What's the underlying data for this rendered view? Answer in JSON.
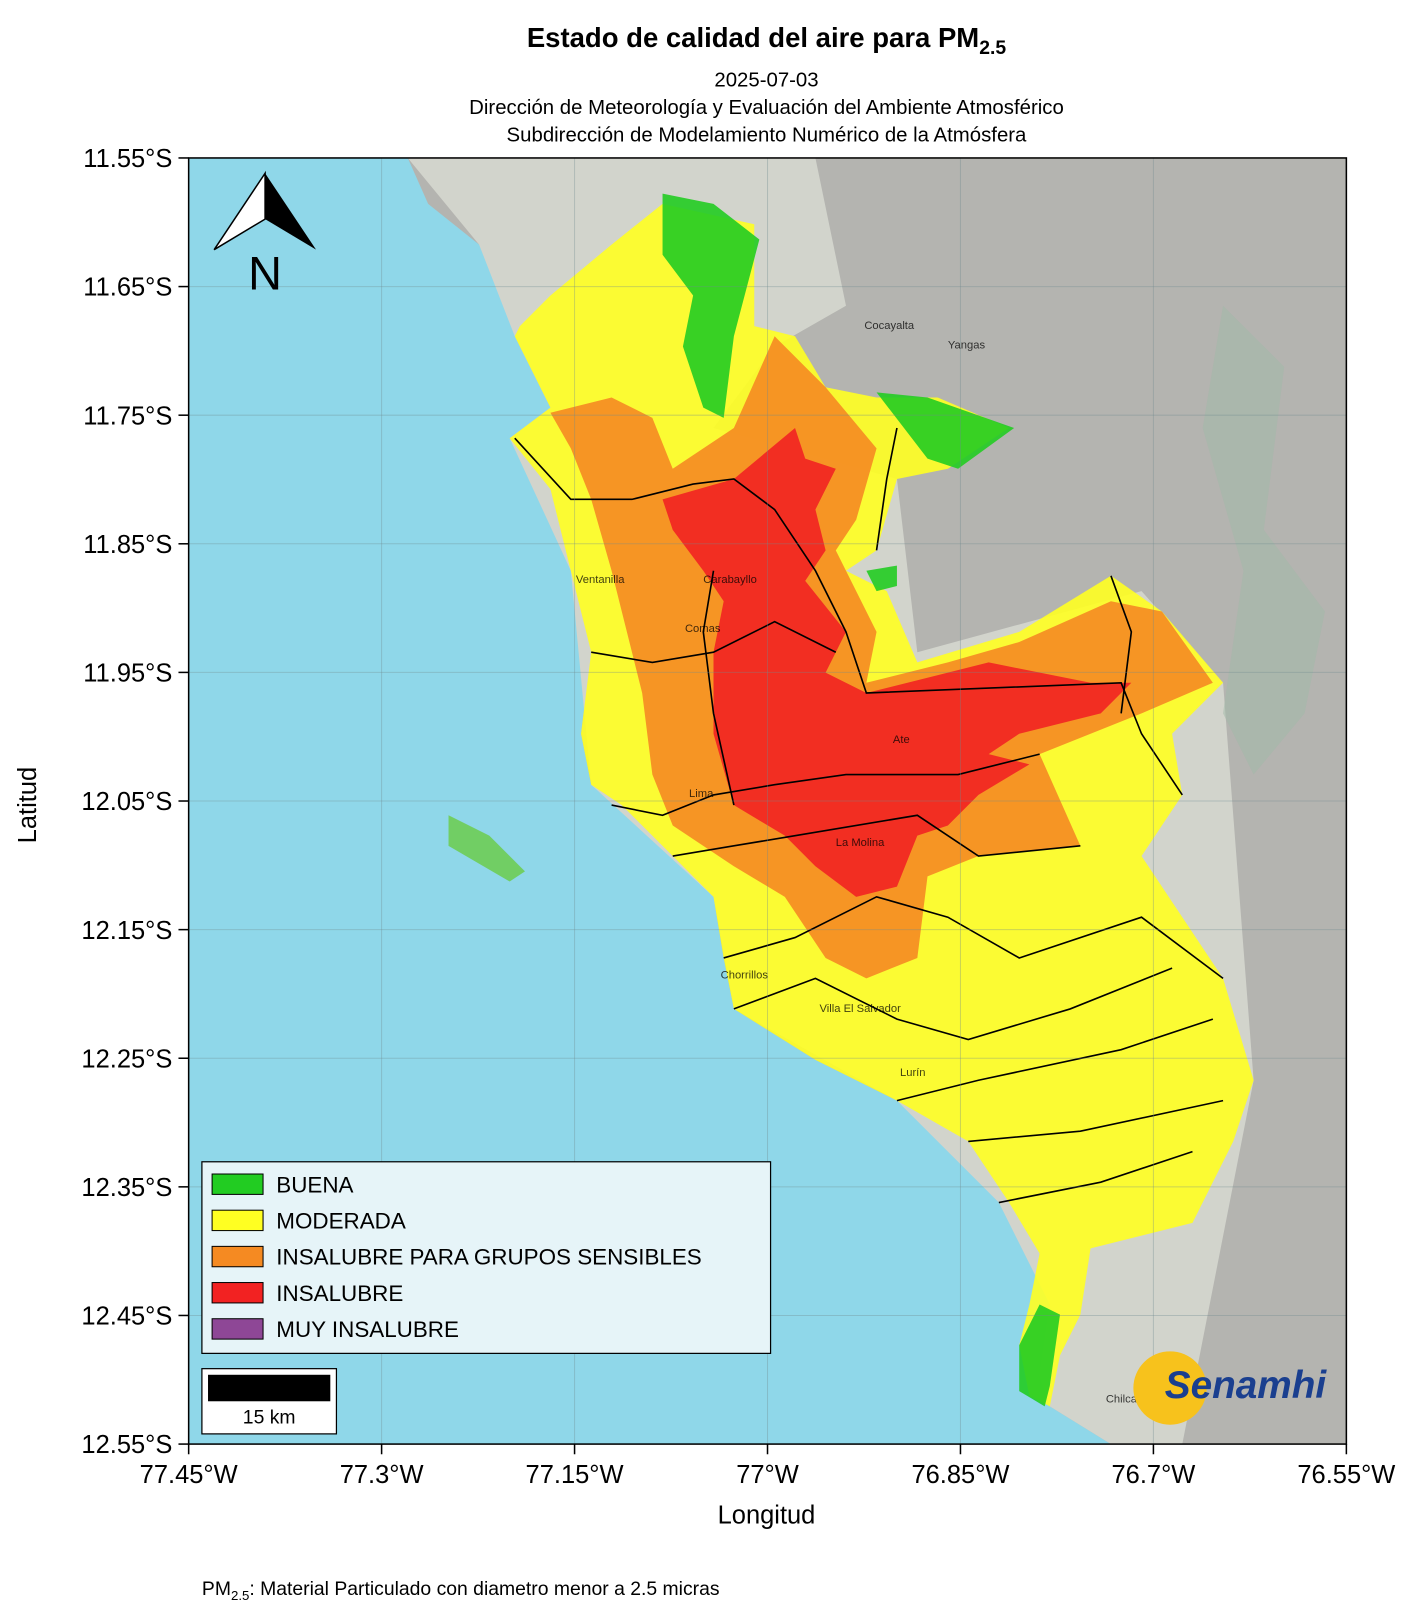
{
  "header": {
    "title": "Estado de calidad del aire para PM",
    "title_subscript": "2.5",
    "subtitle": [
      "2025-07-03",
      "Dirección de Meteorología y Evaluación del Ambiente Atmosférico",
      "Subdirección de Modelamiento Numérico de la Atmósfera"
    ]
  },
  "map": {
    "xlabel": "Longitud",
    "ylabel": "Latitud",
    "xlim": [
      -77.45,
      -76.55
    ],
    "ylim": [
      -12.55,
      -11.55
    ],
    "xticks": [
      {
        "value": -77.45,
        "label": "77.45°W"
      },
      {
        "value": -77.3,
        "label": "77.3°W"
      },
      {
        "value": -77.15,
        "label": "77.15°W"
      },
      {
        "value": -77,
        "label": "77°W"
      },
      {
        "value": -76.85,
        "label": "76.85°W"
      },
      {
        "value": -76.7,
        "label": "76.7°W"
      },
      {
        "value": -76.55,
        "label": "76.55°W"
      }
    ],
    "yticks": [
      {
        "value": -11.55,
        "label": "11.55°S"
      },
      {
        "value": -11.65,
        "label": "11.65°S"
      },
      {
        "value": -11.75,
        "label": "11.75°S"
      },
      {
        "value": -11.85,
        "label": "11.85°S"
      },
      {
        "value": -11.95,
        "label": "11.95°S"
      },
      {
        "value": -12.05,
        "label": "12.05°S"
      },
      {
        "value": -12.15,
        "label": "12.15°S"
      },
      {
        "value": -12.25,
        "label": "12.25°S"
      },
      {
        "value": -12.35,
        "label": "12.35°S"
      },
      {
        "value": -12.45,
        "label": "12.45°S"
      },
      {
        "value": -12.55,
        "label": "12.55°S"
      }
    ],
    "grid": true,
    "north_label": "N",
    "scale_label": "15 km",
    "logo": "Senamhi",
    "places": [
      "Carabayllo",
      "Comas",
      "Ventanilla",
      "Lima",
      "Ate",
      "La Molina",
      "Chorrillos",
      "Villa El Salvador",
      "Cocayalta",
      "Yangas",
      "Chilca",
      "Lurín"
    ]
  },
  "legend": {
    "items": [
      {
        "label": "BUENA",
        "color": "#22cc22"
      },
      {
        "label": "MODERADA",
        "color": "#ffff22"
      },
      {
        "label": "INSALUBRE PARA GRUPOS SENSIBLES",
        "color": "#f58a22"
      },
      {
        "label": "INSALUBRE",
        "color": "#f22222"
      },
      {
        "label": "MUY INSALUBRE",
        "color": "#8e4796"
      }
    ]
  },
  "footnote": {
    "symbol": "PM",
    "subscript": "2.5",
    "text": ": Material Particulado con diametro menor a 2.5 micras"
  }
}
